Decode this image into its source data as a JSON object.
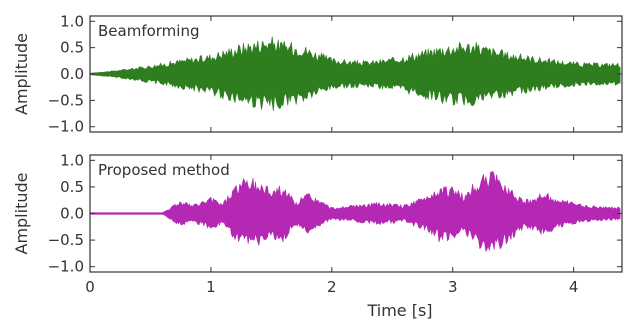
{
  "chart_data": [
    {
      "type": "line",
      "title": "",
      "annotation": "Beamforming",
      "xlabel": "",
      "ylabel": "Amplitude",
      "xlim": [
        0,
        4.4
      ],
      "ylim": [
        -1.1,
        1.1
      ],
      "yticks": [
        -1.0,
        -0.5,
        0.0,
        0.5,
        1.0
      ],
      "ytick_labels": [
        "−1.0",
        "−0.5",
        "0.0",
        "0.5",
        "1.0"
      ],
      "xticks": [
        0,
        1,
        2,
        3,
        4
      ],
      "xtick_labels": [
        "",
        "",
        "",
        "",
        ""
      ],
      "grid": false,
      "color": "#2e7d1f",
      "series": [
        {
          "envelope_time_s": [
            0,
            0.2,
            0.4,
            0.6,
            0.8,
            0.95,
            1.05,
            1.2,
            1.35,
            1.5,
            1.6,
            1.75,
            1.85,
            2.0,
            2.15,
            2.3,
            2.5,
            2.7,
            2.9,
            3.1,
            3.2,
            3.35,
            3.5,
            3.7,
            3.9,
            4.1,
            4.4
          ],
          "envelope_amplitude": [
            0.0,
            0.05,
            0.12,
            0.2,
            0.3,
            0.35,
            0.42,
            0.55,
            0.65,
            0.72,
            0.62,
            0.58,
            0.45,
            0.3,
            0.25,
            0.24,
            0.3,
            0.42,
            0.55,
            0.62,
            0.6,
            0.48,
            0.4,
            0.32,
            0.25,
            0.2,
            0.2
          ]
        }
      ]
    },
    {
      "type": "line",
      "title": "",
      "annotation": "Proposed method",
      "xlabel": "Time [s]",
      "ylabel": "Amplitude",
      "xlim": [
        0,
        4.4
      ],
      "ylim": [
        -1.1,
        1.1
      ],
      "yticks": [
        -1.0,
        -0.5,
        0.0,
        0.5,
        1.0
      ],
      "ytick_labels": [
        "−1.0",
        "−0.5",
        "0.0",
        "0.5",
        "1.0"
      ],
      "xticks": [
        0,
        1,
        2,
        3,
        4
      ],
      "xtick_labels": [
        "0",
        "1",
        "2",
        "3",
        "4"
      ],
      "grid": false,
      "color": "#b428b4",
      "series": [
        {
          "envelope_time_s": [
            0,
            0.6,
            0.75,
            0.85,
            1.0,
            1.1,
            1.2,
            1.3,
            1.4,
            1.5,
            1.6,
            1.7,
            1.8,
            1.9,
            2.0,
            2.2,
            2.4,
            2.6,
            2.75,
            2.9,
            3.0,
            3.1,
            3.2,
            3.3,
            3.4,
            3.5,
            3.6,
            3.75,
            3.9,
            4.1,
            4.4
          ],
          "envelope_amplitude": [
            0.0,
            0.0,
            0.25,
            0.15,
            0.3,
            0.2,
            0.55,
            0.7,
            0.6,
            0.5,
            0.55,
            0.2,
            0.4,
            0.25,
            0.1,
            0.15,
            0.2,
            0.15,
            0.3,
            0.55,
            0.5,
            0.35,
            0.65,
            0.82,
            0.7,
            0.45,
            0.25,
            0.4,
            0.25,
            0.15,
            0.1
          ]
        }
      ]
    }
  ]
}
